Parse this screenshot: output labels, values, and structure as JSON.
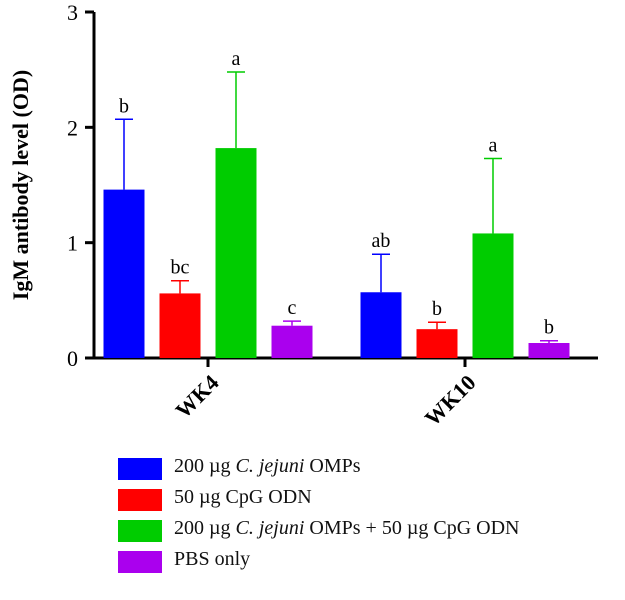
{
  "chart_data": {
    "type": "bar",
    "ylabel": "IgM antibody level (OD)",
    "xlabel": "",
    "ylim": [
      0,
      3
    ],
    "yticks": [
      "0",
      "1",
      "2",
      "3"
    ],
    "categories": [
      "WK4",
      "WK10"
    ],
    "series": [
      {
        "name": "200 µg C. jejuni OMPs",
        "color": "#0000ff",
        "values": [
          1.46,
          0.57
        ],
        "errors": [
          0.61,
          0.33
        ],
        "letters": [
          "b",
          "ab"
        ]
      },
      {
        "name": "50 µg CpG ODN",
        "color": "#ff0000",
        "values": [
          0.56,
          0.25
        ],
        "errors": [
          0.11,
          0.06
        ],
        "letters": [
          "bc",
          "b"
        ]
      },
      {
        "name": "200 µg C. jejuni OMPs + 50 µg CpG ODN",
        "color": "#00cc00",
        "values": [
          1.82,
          1.08
        ],
        "errors": [
          0.66,
          0.65
        ],
        "letters": [
          "a",
          "a"
        ]
      },
      {
        "name": "PBS only",
        "color": "#aa00ee",
        "values": [
          0.28,
          0.13
        ],
        "errors": [
          0.04,
          0.02
        ],
        "letters": [
          "c",
          "b"
        ]
      }
    ]
  },
  "legend": {
    "items": [
      {
        "pre": "200 µg ",
        "ital": "C. jejuni",
        "post": " OMPs"
      },
      {
        "pre": "50 µg CpG ODN",
        "ital": "",
        "post": ""
      },
      {
        "pre": "200 µg ",
        "ital": "C. jejuni",
        "post": " OMPs + 50 µg CpG ODN"
      },
      {
        "pre": "PBS only",
        "ital": "",
        "post": ""
      }
    ]
  }
}
